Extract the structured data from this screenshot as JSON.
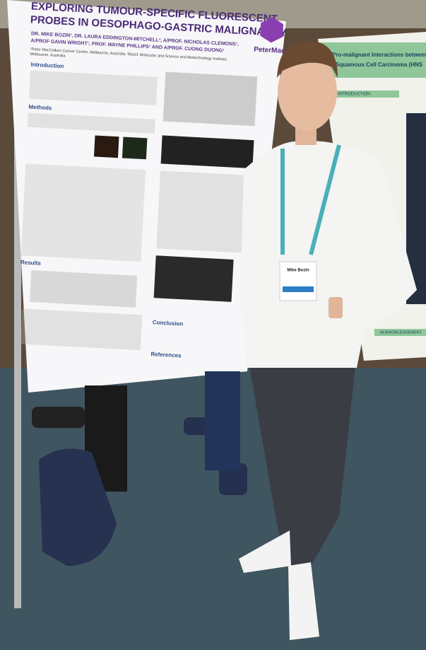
{
  "poster": {
    "title": [
      "EXPLORING TUMOUR-SPECIFIC FLUORESCENT",
      "PROBES IN OESOPHAGO-GASTRIC MALIGNANCY"
    ],
    "authors": [
      "DR. MIKE BOZIN¹, DR. LAURA EDDINGTON-MITCHELL², A/PROF. NICHOLAS CLEMONS¹,",
      "A/PROF GAVIN WRIGHT¹, PROF. WAYNE PHILLIPS¹ AND A/PROF. CUONG DUONG¹"
    ],
    "affiliation": [
      "¹Peter MacCallum Cancer Centre, Melbourne, Australia; ²Bio21 Molecular and Science and Biotechnology Institute,",
      "Melbourne, Australia."
    ],
    "logo": "PeterMac",
    "sections": [
      "Introduction",
      "Methods",
      "Results",
      "Conclusion",
      "References"
    ]
  },
  "right_poster": {
    "title": [
      "Pro-malignant Interactions between",
      "Squamous Cell Carcinoma (HNS"
    ],
    "sections": [
      "INTRODUCTION",
      "ACKNOWLEDGEMENT"
    ]
  },
  "badge": {
    "name": "Mike Bozin"
  }
}
